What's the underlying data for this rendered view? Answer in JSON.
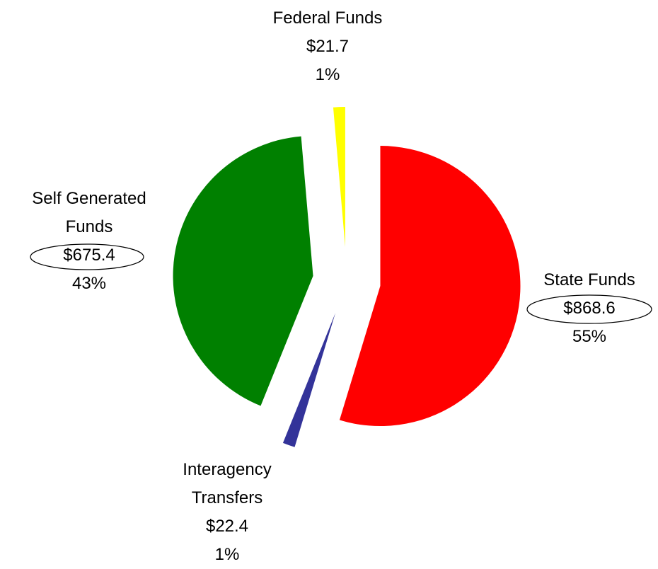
{
  "chart_data": {
    "type": "pie",
    "categories": [
      "State Funds",
      "Interagency Transfers",
      "Self Generated Funds",
      "Federal Funds"
    ],
    "values": [
      868.6,
      22.4,
      675.4,
      21.7
    ],
    "value_labels": [
      "$868.6",
      "$22.4",
      "$675.4",
      "$21.7"
    ],
    "percentages": [
      55,
      1,
      43,
      1
    ],
    "percentage_labels": [
      "55%",
      "1%",
      "43%",
      "1%"
    ],
    "colors": [
      "#ff0000",
      "#333399",
      "#008000",
      "#ffff00"
    ]
  }
}
